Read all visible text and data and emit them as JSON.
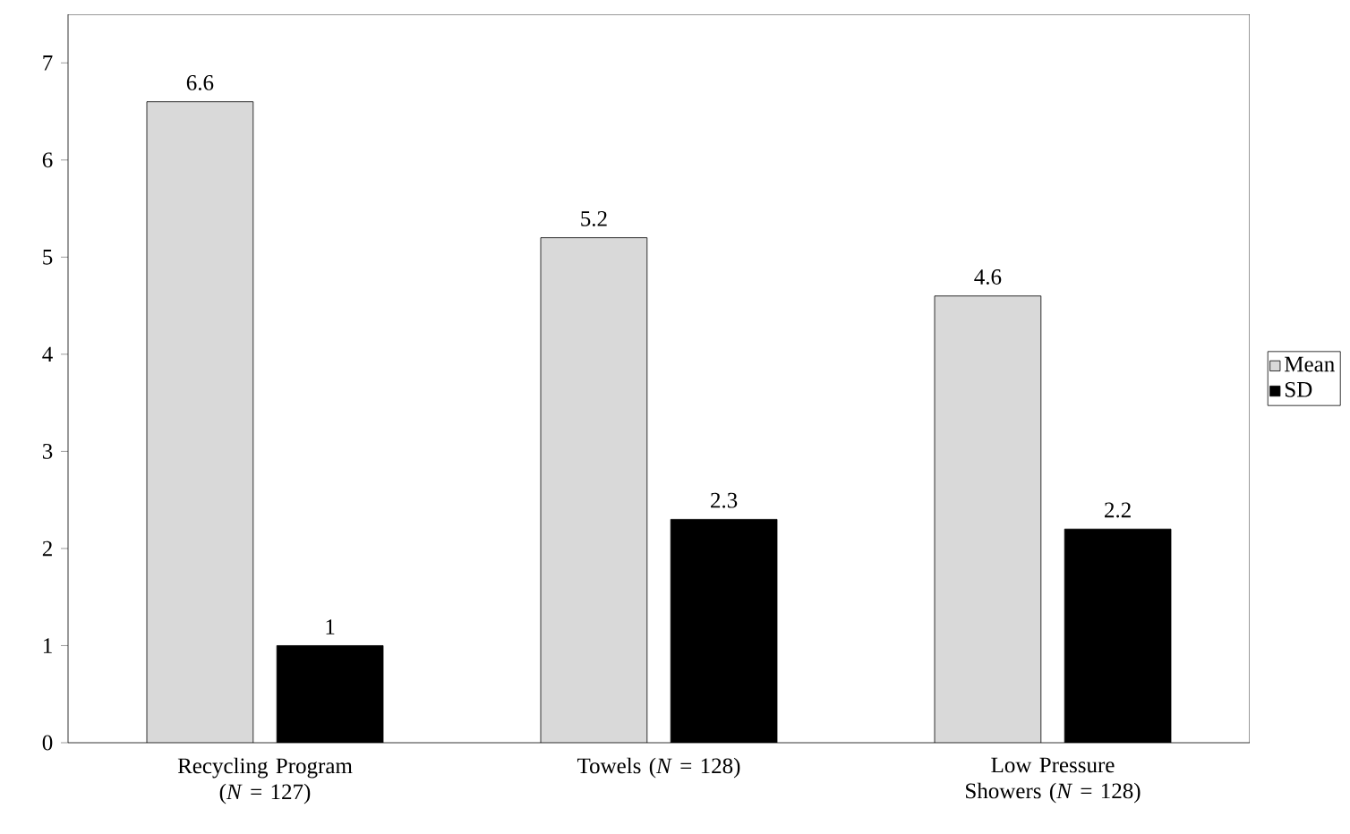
{
  "chart_data": {
    "type": "bar",
    "categories": [
      "Recycling Program (*N* = 127)",
      "Towels (*N* = 128)",
      "Low Pressure Showers (*N* = 128)"
    ],
    "series": [
      {
        "name": "Mean",
        "color": "#d9d9d9",
        "values": [
          6.6,
          5.2,
          4.6
        ]
      },
      {
        "name": "SD",
        "color": "#000000",
        "values": [
          1,
          2.3,
          2.2
        ]
      }
    ],
    "ylim": [
      0,
      7.5
    ],
    "yticks": [
      0,
      1,
      2,
      3,
      4,
      5,
      6,
      7
    ],
    "data_labels": true,
    "grid": false,
    "legend": "right"
  }
}
